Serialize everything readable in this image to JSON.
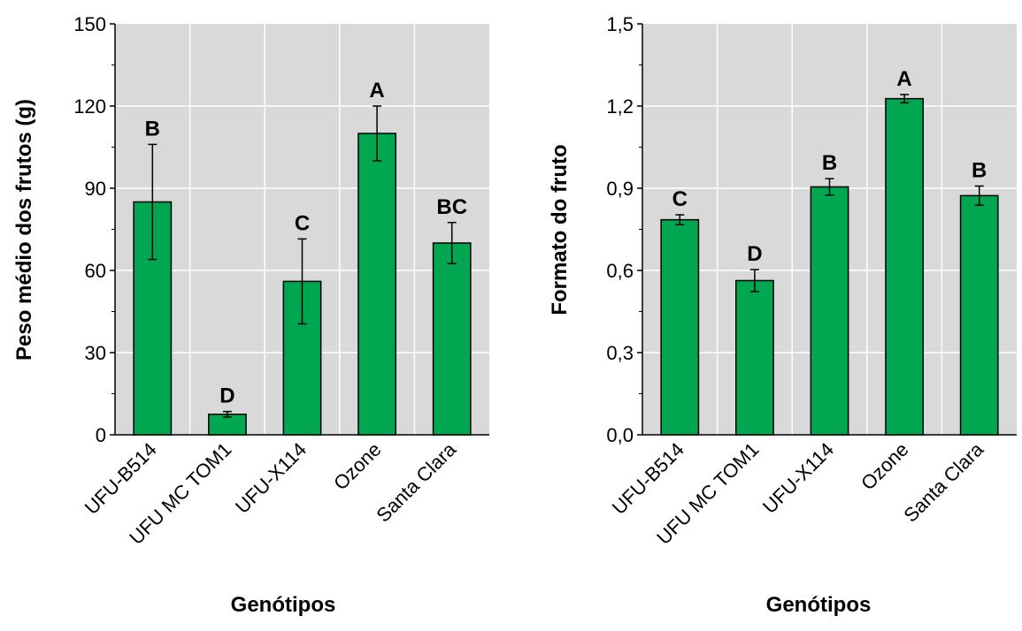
{
  "chart_data": [
    {
      "type": "bar",
      "categories": [
        "UFU-B514",
        "UFU MC TOM1",
        "UFU-X114",
        "Ozone",
        "Santa Clara"
      ],
      "values": [
        85,
        7.5,
        56,
        110,
        70
      ],
      "error": [
        21,
        1,
        15.5,
        10,
        7.5
      ],
      "significance_letters": [
        "B",
        "D",
        "C",
        "A",
        "BC"
      ],
      "xlabel": "Genótipos",
      "ylabel": "Peso médio dos frutos (g)",
      "ylim": [
        0,
        150
      ],
      "yticks": [
        "0",
        "30",
        "60",
        "90",
        "120",
        "150"
      ],
      "grid": true,
      "bar_color": "#00a650",
      "plot_background": "#d9d9d9"
    },
    {
      "type": "bar",
      "categories": [
        "UFU-B514",
        "UFU MC TOM1",
        "UFU-X114",
        "Ozone",
        "Santa Clara"
      ],
      "values": [
        0.785,
        0.563,
        0.905,
        1.227,
        0.873
      ],
      "error": [
        0.018,
        0.04,
        0.03,
        0.015,
        0.035
      ],
      "significance_letters": [
        "C",
        "D",
        "B",
        "A",
        "B"
      ],
      "xlabel": "Genótipos",
      "ylabel": "Formato do fruto",
      "ylim": [
        0,
        1.5
      ],
      "yticks": [
        "0,0",
        "0,3",
        "0,6",
        "0,9",
        "1,2",
        "1,5"
      ],
      "grid": true,
      "bar_color": "#00a650",
      "plot_background": "#d9d9d9"
    }
  ]
}
